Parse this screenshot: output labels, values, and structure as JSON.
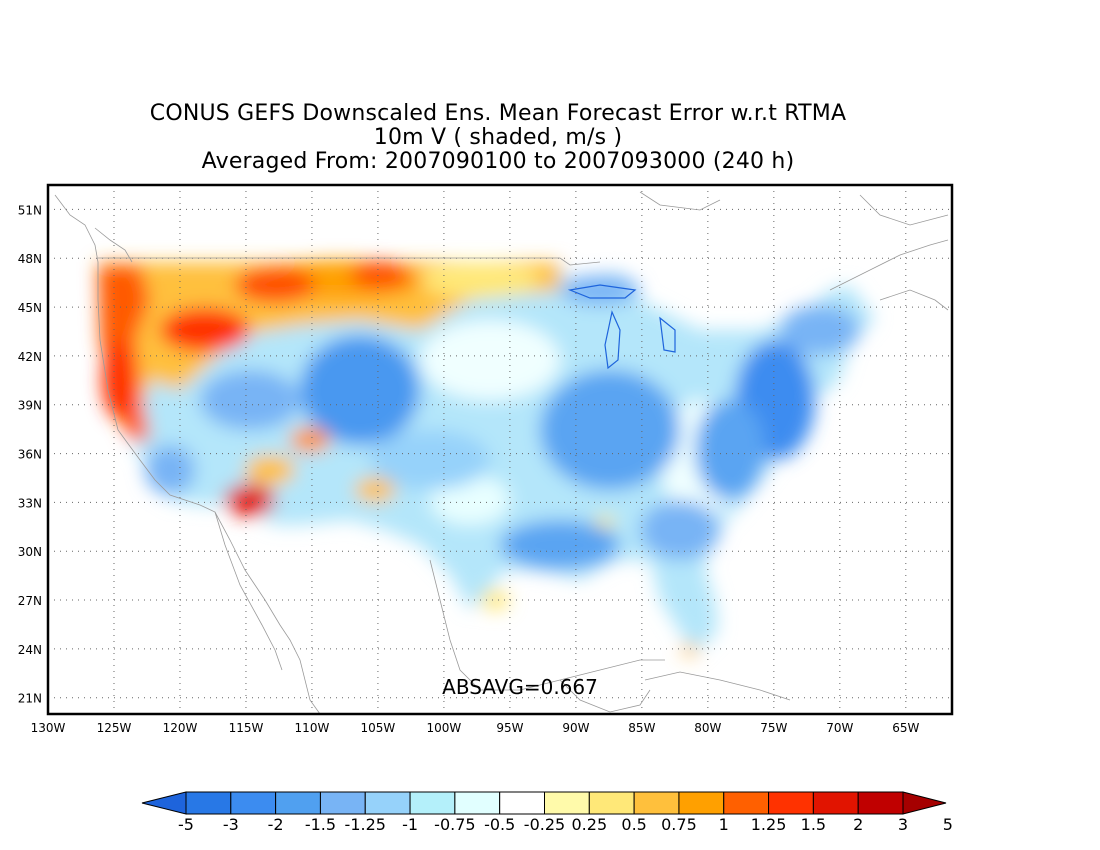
{
  "title": {
    "line1": "CONUS GEFS Downscaled Ens. Mean Forecast Error w.r.t RTMA",
    "line2": "10m V ( shaded, m/s )",
    "line3": "Averaged From: 2007090100 to 2007093000 (240 h)"
  },
  "map": {
    "lat_labels": [
      "51N",
      "48N",
      "45N",
      "42N",
      "39N",
      "36N",
      "33N",
      "30N",
      "27N",
      "24N",
      "21N"
    ],
    "lon_labels": [
      "130W",
      "125W",
      "120W",
      "115W",
      "110W",
      "105W",
      "100W",
      "95W",
      "90W",
      "85W",
      "80W",
      "75W",
      "70W",
      "65W"
    ],
    "lat_range": [
      20,
      52.5
    ],
    "lon_range": [
      -130,
      -61.5
    ],
    "grid": "dotted",
    "annotation": "ABSAVG=0.667"
  },
  "colorbar": {
    "labels": [
      "-5",
      "-3",
      "-2",
      "-1.5",
      "-1.25",
      "-1",
      "-0.75",
      "-0.5",
      "-0.25",
      "0.25",
      "0.5",
      "0.75",
      "1",
      "1.25",
      "1.5",
      "2",
      "3",
      "5"
    ],
    "colors": [
      "#1e64dc",
      "#2878e6",
      "#3c8cf0",
      "#50a0f0",
      "#78b4f5",
      "#96d2fa",
      "#b4f0fa",
      "#e1ffff",
      "#ffffff",
      "#fffaaa",
      "#ffe878",
      "#ffc03c",
      "#ffa000",
      "#ff6000",
      "#ff3200",
      "#e11400",
      "#c00000",
      "#a50000"
    ]
  }
}
